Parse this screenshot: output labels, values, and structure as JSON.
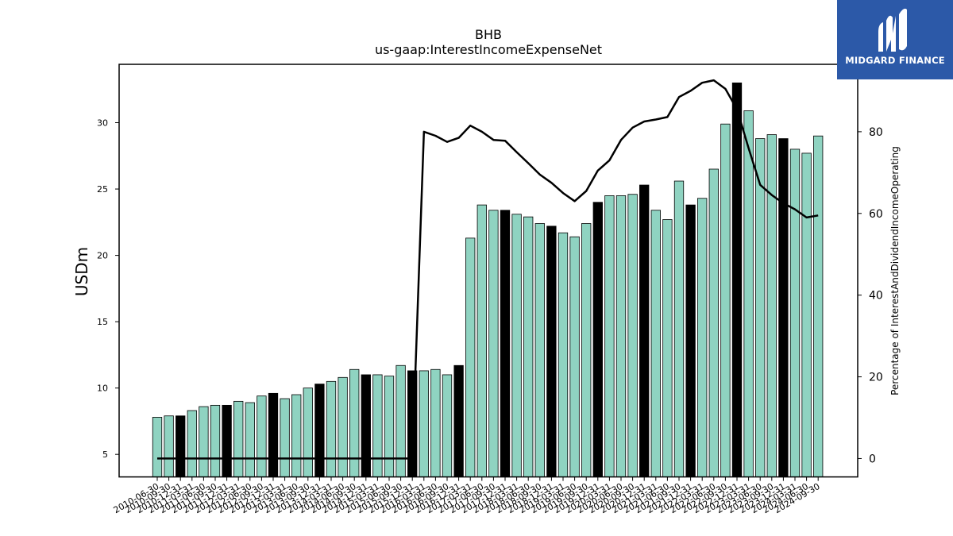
{
  "chart_data": {
    "type": "bar",
    "title": "BHB",
    "subtitle": "us-gaap:InterestIncomeExpenseNet",
    "ylabel": "USDm",
    "y2label": "Percentage of InterestAndDividendIncomeOperating",
    "ylim": [
      3.3,
      34.4
    ],
    "y2lim": [
      -4.5,
      96.5
    ],
    "yticks": [
      5,
      10,
      15,
      20,
      25,
      30
    ],
    "y2ticks": [
      0,
      20,
      40,
      60,
      80
    ],
    "categories": [
      "2010-06-30",
      "2010-09-30",
      "2010-12-31",
      "2011-03-31",
      "2011-06-30",
      "2011-09-30",
      "2011-12-31",
      "2012-03-31",
      "2012-06-30",
      "2012-09-30",
      "2012-12-31",
      "2013-03-31",
      "2013-06-30",
      "2013-09-30",
      "2013-12-31",
      "2014-03-31",
      "2014-06-30",
      "2014-09-30",
      "2014-12-31",
      "2015-03-31",
      "2015-06-30",
      "2015-09-30",
      "2015-12-31",
      "2016-03-31",
      "2016-06-30",
      "2016-09-30",
      "2016-12-31",
      "2017-03-31",
      "2017-06-30",
      "2017-09-30",
      "2017-12-31",
      "2018-03-31",
      "2018-06-30",
      "2018-09-30",
      "2018-12-31",
      "2019-03-31",
      "2019-06-30",
      "2019-09-30",
      "2019-12-31",
      "2020-03-31",
      "2020-06-30",
      "2020-09-30",
      "2020-12-31",
      "2021-03-31",
      "2021-06-30",
      "2021-09-30",
      "2021-12-31",
      "2022-03-31",
      "2022-06-30",
      "2022-09-30",
      "2022-12-31",
      "2023-03-31",
      "2023-06-30",
      "2023-09-30",
      "2023-12-31",
      "2024-03-31",
      "2024-06-30",
      "2024-09-30"
    ],
    "series": [
      {
        "type": "bar",
        "values": [
          7.8,
          7.9,
          7.9,
          8.3,
          8.6,
          8.7,
          8.7,
          9.0,
          8.9,
          9.4,
          9.6,
          9.2,
          9.5,
          10.0,
          10.3,
          10.5,
          10.8,
          11.4,
          11.0,
          11.0,
          10.9,
          11.7,
          11.3,
          11.3,
          11.4,
          11.0,
          11.7,
          21.3,
          23.8,
          23.4,
          23.4,
          23.1,
          22.9,
          22.4,
          22.2,
          21.7,
          21.4,
          22.4,
          24.0,
          24.5,
          24.5,
          24.6,
          25.3,
          23.4,
          22.7,
          25.6,
          23.8,
          24.3,
          26.5,
          29.9,
          33.0,
          30.9,
          28.8,
          29.1,
          28.8,
          28.0,
          27.7,
          29.0
        ],
        "highlight_color": "#000000",
        "color": "#8fd3c1"
      },
      {
        "type": "line",
        "axis": "right",
        "values": [
          0,
          0,
          0,
          0,
          0,
          0,
          0,
          0,
          0,
          0,
          0,
          0,
          0,
          0,
          0,
          0,
          0,
          0,
          0,
          0,
          0,
          0,
          0,
          80,
          79,
          77.5,
          78.5,
          81.5,
          80,
          78,
          77.8,
          75,
          72.3,
          69.5,
          67.5,
          65,
          63,
          65.5,
          70.5,
          73,
          78,
          81,
          82.5,
          83,
          83.6,
          88.5,
          90,
          92,
          92.6,
          90.5,
          85.5,
          76,
          67,
          64.5,
          62.5,
          61,
          59,
          59.5
        ],
        "color": "#000000"
      }
    ],
    "grid": false,
    "legend": "none"
  },
  "logo": {
    "text": "MIDGARD FINANCE"
  }
}
